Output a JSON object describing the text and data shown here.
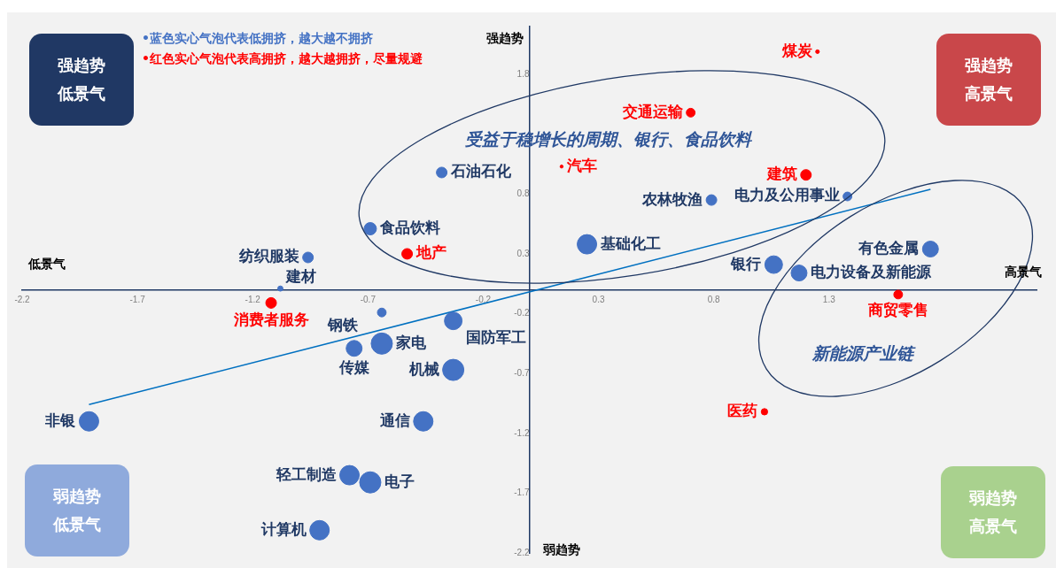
{
  "chart_data": {
    "type": "bubble",
    "xlim": [
      -2.2,
      2.2
    ],
    "ylim": [
      -2.2,
      2.2
    ],
    "xticks": [
      -2.2,
      -1.7,
      -1.2,
      -0.7,
      -0.2,
      0.3,
      0.8,
      1.3
    ],
    "yticks": [
      1.8,
      0.8,
      0.3,
      -0.2,
      -0.7,
      -1.2,
      -1.7,
      -2.2
    ],
    "grid": false,
    "legend": "top left",
    "series": [
      {
        "name": "•蓝色实心气泡代表低拥挤，越大越不拥挤",
        "color": "#4472c4",
        "x": [
          -0.38,
          -0.69,
          -0.96,
          -1.08,
          -0.64,
          -0.76,
          -0.64,
          -0.33,
          -0.33,
          0.25,
          0.79,
          1.38,
          1.06,
          1.17,
          1.74,
          -1.91,
          -0.46,
          -0.78,
          -0.69,
          -0.91
        ],
        "values": [
          0.98,
          0.51,
          0.27,
          0.01,
          -0.19,
          -0.49,
          -0.45,
          -0.26,
          -0.67,
          0.38,
          0.75,
          0.78,
          0.21,
          0.14,
          0.34,
          -1.1,
          -1.1,
          -1.55,
          -1.61,
          -2.01
        ],
        "sizes": [
          0.25,
          0.34,
          0.25,
          0.06,
          0.17,
          0.56,
          1,
          0.69,
          1,
          0.84,
          0.25,
          0.17,
          0.69,
          0.56,
          0.56,
          0.84,
          0.84,
          0.84,
          1,
          0.84
        ]
      },
      {
        "name": "•红色实心气泡代表高拥挤，越大越拥挤，尽量规避",
        "color": "#ff0000",
        "x": [
          1.25,
          0.7,
          1.2,
          0.14,
          -0.53,
          -1.12,
          1.6,
          1.02
        ],
        "values": [
          1.99,
          1.48,
          0.96,
          1.03,
          0.3,
          -0.11,
          -0.04,
          -1.02
        ],
        "sizes": [
          0.03,
          0.17,
          0.25,
          0.02,
          0.25,
          0.25,
          0.17,
          0.09
        ]
      },
      {
        "type": "line",
        "color": "#0070c0",
        "x": [
          -1.91,
          1.74
        ],
        "values": [
          -0.96,
          0.84
        ]
      }
    ],
    "annotations": [
      {
        "text": "石油石化",
        "x": -0.38,
        "y": 0.98
      },
      {
        "text": "食品饮料",
        "x": -0.69,
        "y": 0.51
      },
      {
        "text": "纺织服装",
        "x": -0.96,
        "y": 0.27
      },
      {
        "text": "建材",
        "x": -1.08,
        "y": 0.01
      },
      {
        "text": "钢铁",
        "x": -0.64,
        "y": -0.19
      },
      {
        "text": "传媒",
        "x": -0.76,
        "y": -0.49
      },
      {
        "text": "家电",
        "x": -0.64,
        "y": -0.45
      },
      {
        "text": "国防军工",
        "x": -0.33,
        "y": -0.26
      },
      {
        "text": "机械",
        "x": -0.33,
        "y": -0.67
      },
      {
        "text": "基础化工",
        "x": 0.25,
        "y": 0.38
      },
      {
        "text": "农林牧渔",
        "x": 0.79,
        "y": 0.75
      },
      {
        "text": "电力及公用事业",
        "x": 1.38,
        "y": 0.78
      },
      {
        "text": "银行",
        "x": 1.06,
        "y": 0.21
      },
      {
        "text": "电力设备及新能源",
        "x": 1.17,
        "y": 0.14
      },
      {
        "text": "有色金属",
        "x": 1.74,
        "y": 0.34
      },
      {
        "text": "非银",
        "x": -1.91,
        "y": -1.1
      },
      {
        "text": "通信",
        "x": -0.46,
        "y": -1.1
      },
      {
        "text": "轻工制造",
        "x": -0.78,
        "y": -1.55
      },
      {
        "text": "电子",
        "x": -0.69,
        "y": -1.61
      },
      {
        "text": "计算机",
        "x": -0.91,
        "y": -2.01
      },
      {
        "text": "煤炭",
        "x": 1.25,
        "y": 1.99
      },
      {
        "text": "交通运输",
        "x": 0.7,
        "y": 1.48
      },
      {
        "text": "建筑",
        "x": 1.2,
        "y": 0.96
      },
      {
        "text": "汽车",
        "x": 0.14,
        "y": 1.03
      },
      {
        "text": "地产",
        "x": -0.53,
        "y": 0.3
      },
      {
        "text": "消费者服务",
        "x": -1.12,
        "y": -0.11
      },
      {
        "text": "商贸零售",
        "x": 1.6,
        "y": -0.04
      },
      {
        "text": "医药",
        "x": 1.02,
        "y": -1.02
      },
      "强趋势低景气",
      "强趋势高景气",
      "弱趋势低景气",
      "弱趋势高景气",
      "低景气",
      "高景气",
      "强趋势",
      "弱趋势",
      "受益于稳增长的周期、银行、食品饮料",
      "新能源产业链"
    ]
  }
}
